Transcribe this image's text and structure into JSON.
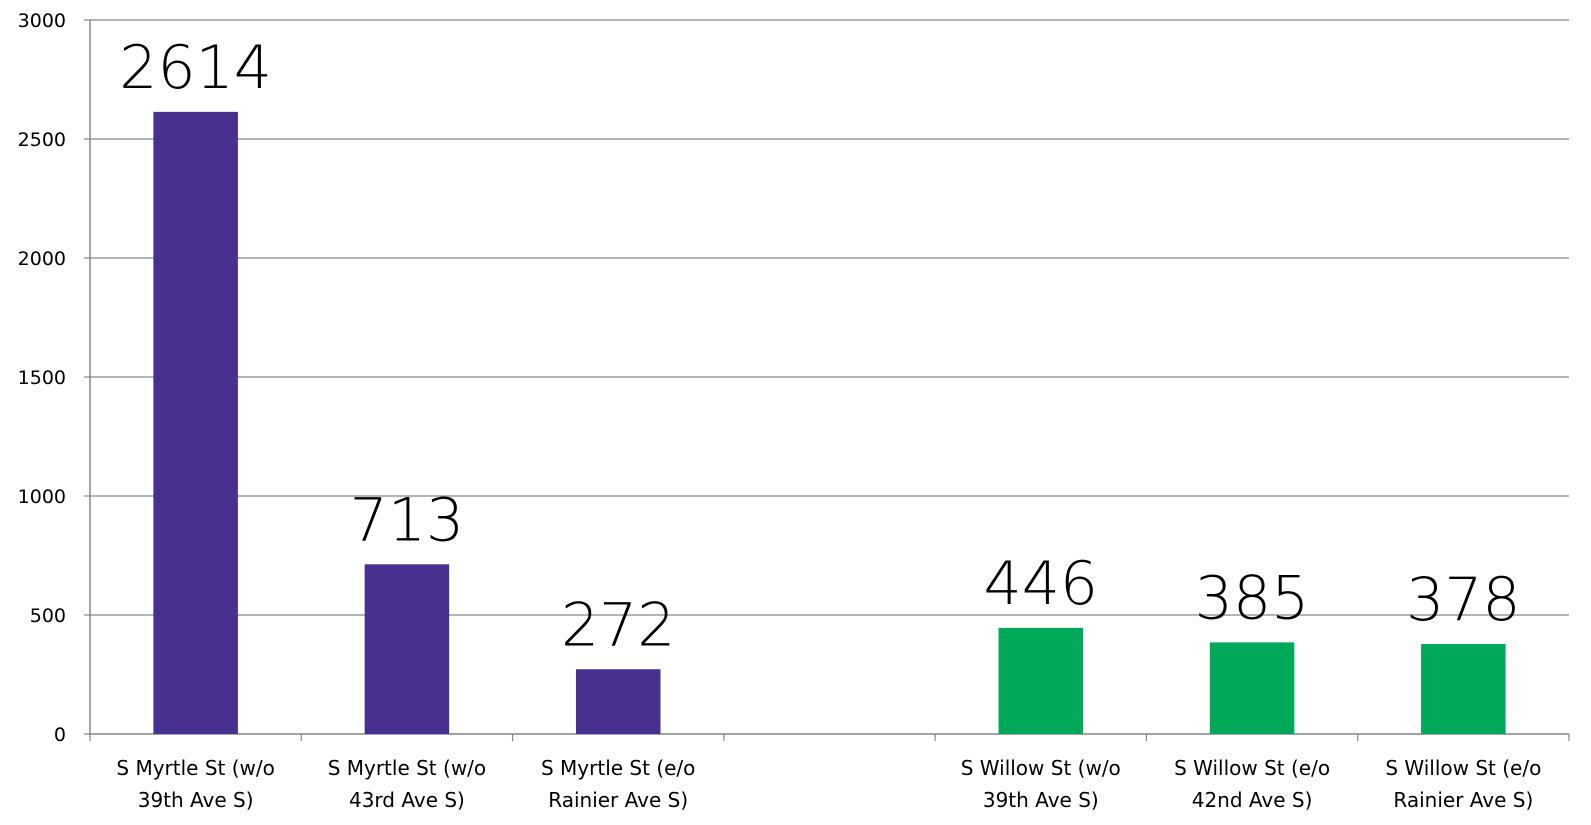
{
  "chart_data": {
    "type": "bar",
    "categories": [
      [
        "S Myrtle St (w/o",
        "39th Ave S)"
      ],
      [
        "S Myrtle St (w/o",
        "43rd Ave S)"
      ],
      [
        "S Myrtle St (e/o",
        "Rainier Ave S)"
      ],
      [
        "",
        ""
      ],
      [
        "S Willow St (w/o",
        "39th Ave S)"
      ],
      [
        "S Willow St (e/o",
        "42nd Ave S)"
      ],
      [
        "S Willow St (e/o",
        "Rainier Ave S)"
      ]
    ],
    "values": [
      2614,
      713,
      272,
      null,
      446,
      385,
      378
    ],
    "bar_colors": [
      "#48308F",
      "#48308F",
      "#48308F",
      null,
      "#00A85A",
      "#00A85A",
      "#00A85A"
    ],
    "data_labels": [
      "2614",
      "713",
      "272",
      "",
      "446",
      "385",
      "378"
    ],
    "yticks": [
      "0",
      "500",
      "1000",
      "1500",
      "2000",
      "2500",
      "3000"
    ],
    "ylim": [
      0,
      3000
    ],
    "grid": true,
    "legend": "none",
    "title": "",
    "xlabel": "",
    "ylabel": ""
  }
}
